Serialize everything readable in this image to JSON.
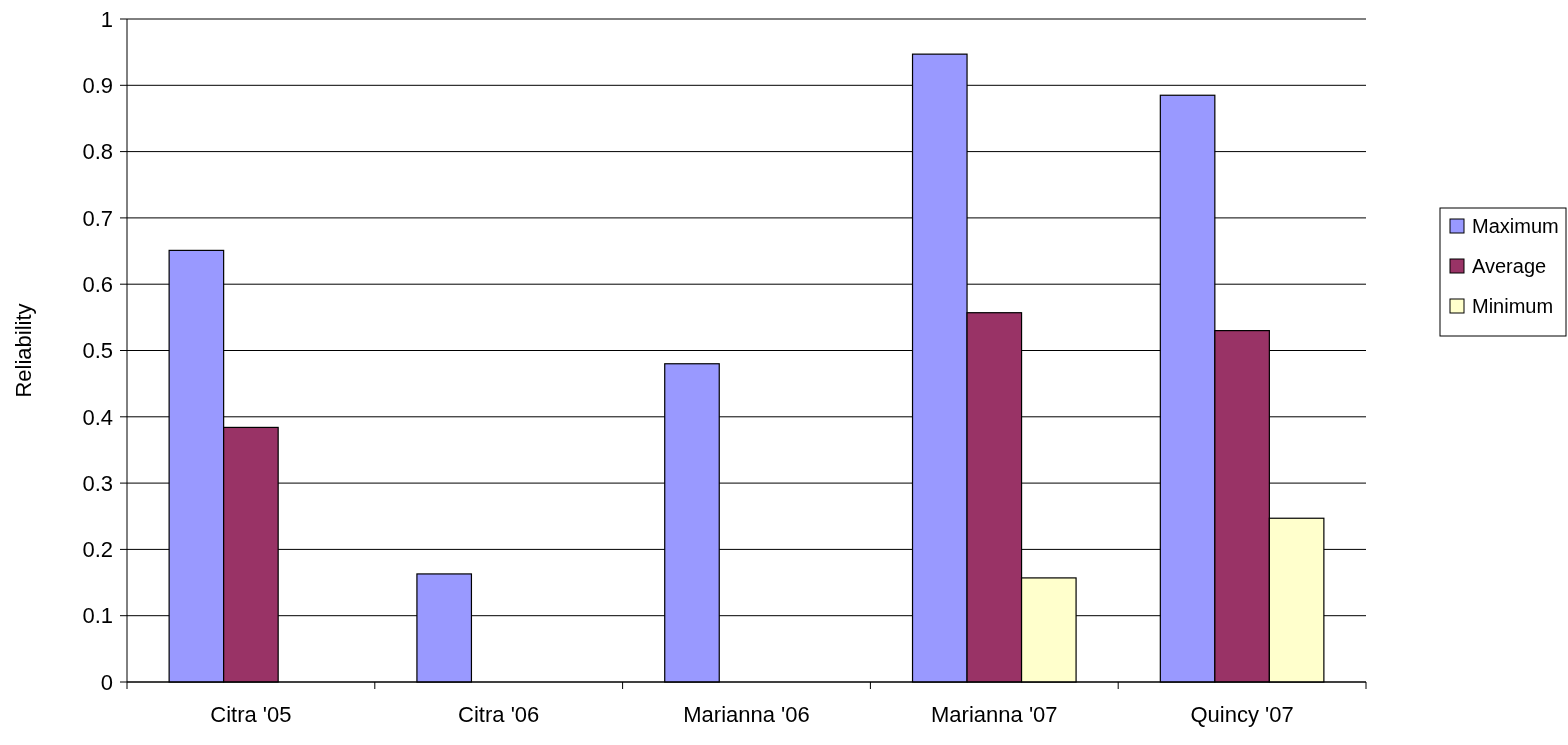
{
  "chart_data": {
    "type": "bar",
    "ylabel": "Reliability",
    "categories": [
      "Citra '05",
      "Citra '06",
      "Marianna '06",
      "Marianna '07",
      "Quincy '07"
    ],
    "series": [
      {
        "name": "Maximum",
        "color": "#9999ff",
        "values": [
          0.651,
          0.163,
          0.48,
          0.947,
          0.885
        ]
      },
      {
        "name": "Average",
        "color": "#993366",
        "values": [
          0.384,
          null,
          null,
          0.557,
          0.53
        ]
      },
      {
        "name": "Minimum",
        "color": "#ffffcc",
        "values": [
          null,
          null,
          null,
          0.157,
          0.247
        ]
      }
    ],
    "ylim": [
      0,
      1
    ],
    "yticks": [
      0,
      0.1,
      0.2,
      0.3,
      0.4,
      0.5,
      0.6,
      0.7,
      0.8,
      0.9,
      1
    ],
    "grid": "y",
    "legend": "right"
  }
}
